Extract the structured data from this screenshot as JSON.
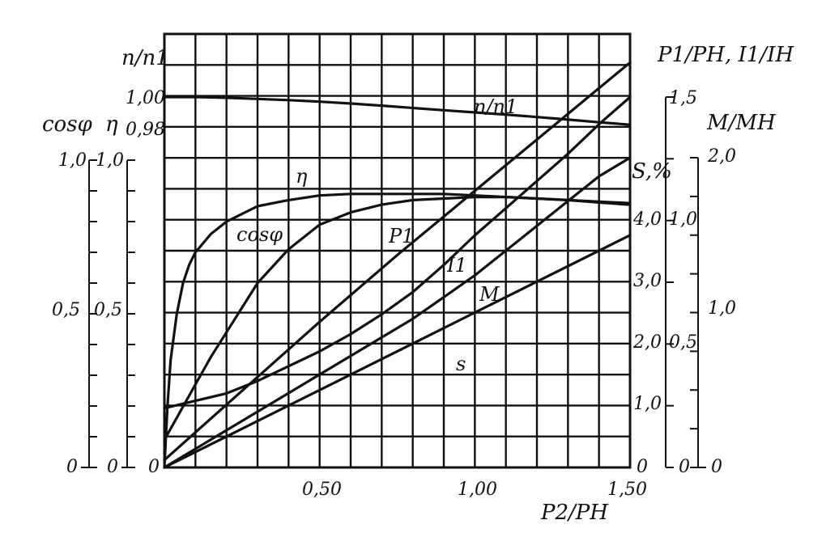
{
  "chart_data": {
    "type": "line",
    "x": {
      "label": "P2/PH",
      "range": [
        0,
        1.5
      ],
      "tick_labels": [
        "0,50",
        "1,00",
        "1,50"
      ],
      "tick_values": [
        0.5,
        1.0,
        1.5
      ],
      "origin_label": "0"
    },
    "axes": {
      "cos_phi": {
        "title": "cosφ",
        "range": [
          0,
          1.0
        ],
        "tick_labels": [
          "1,0",
          "0,5",
          "0"
        ]
      },
      "eta": {
        "title": "η",
        "range": [
          0,
          1.0
        ],
        "tick_labels": [
          "1,0",
          "0,5",
          "0"
        ]
      },
      "n_ratio": {
        "title": "n/n1",
        "range": [
          0.98,
          1.0
        ],
        "tick_labels": [
          "1,00",
          "0,98"
        ]
      },
      "p1_i1": {
        "title": "P1/PH, I1/IH",
        "range": [
          0,
          1.5
        ],
        "tick_labels": [
          "1,5",
          "1,0",
          "0,5",
          "0"
        ]
      },
      "slip": {
        "title": "S,%",
        "range": [
          0,
          5.0
        ],
        "tick_labels": [
          "4,0",
          "3,0",
          "2,0",
          "1,0",
          "0"
        ]
      },
      "torque": {
        "title": "M/MH",
        "range": [
          0,
          2.0
        ],
        "tick_labels": [
          "2,0",
          "1,0",
          "0"
        ]
      }
    },
    "grid": true,
    "series": [
      {
        "name": "n/n1",
        "axis": "n_ratio",
        "x": [
          0,
          0.1,
          0.2,
          0.3,
          0.4,
          0.5,
          0.6,
          0.7,
          0.8,
          0.9,
          1.0,
          1.1,
          1.2,
          1.3,
          1.4,
          1.5
        ],
        "y": [
          1.0,
          1.0,
          0.9995,
          0.9988,
          0.998,
          0.997,
          0.9958,
          0.9944,
          0.9929,
          0.9914,
          0.99,
          0.9886,
          0.987,
          0.9853,
          0.9836,
          0.982
        ]
      },
      {
        "name": "η",
        "axis": "eta",
        "x": [
          0,
          0.01,
          0.02,
          0.04,
          0.06,
          0.08,
          0.1,
          0.15,
          0.2,
          0.3,
          0.4,
          0.5,
          0.6,
          0.7,
          0.8,
          0.9,
          1.0,
          1.1,
          1.2,
          1.3,
          1.4,
          1.5
        ],
        "y": [
          0,
          0.2,
          0.35,
          0.5,
          0.6,
          0.66,
          0.7,
          0.76,
          0.8,
          0.85,
          0.87,
          0.885,
          0.89,
          0.89,
          0.89,
          0.89,
          0.885,
          0.88,
          0.875,
          0.87,
          0.862,
          0.855
        ]
      },
      {
        "name": "cosφ",
        "axis": "cos_phi",
        "x": [
          0,
          0.05,
          0.1,
          0.15,
          0.2,
          0.3,
          0.4,
          0.5,
          0.6,
          0.7,
          0.8,
          0.9,
          1.0,
          1.1,
          1.2,
          1.3,
          1.4,
          1.5
        ],
        "y": [
          0.09,
          0.18,
          0.27,
          0.36,
          0.44,
          0.6,
          0.71,
          0.79,
          0.83,
          0.855,
          0.87,
          0.875,
          0.88,
          0.88,
          0.875,
          0.87,
          0.865,
          0.86
        ]
      },
      {
        "name": "P1",
        "axis": "p1_i1",
        "x": [
          0,
          0.25,
          0.5,
          0.75,
          1.0,
          1.25,
          1.5
        ],
        "y": [
          0.03,
          0.31,
          0.59,
          0.86,
          1.12,
          1.38,
          1.64
        ]
      },
      {
        "name": "I1",
        "axis": "p1_i1",
        "x": [
          0,
          0.1,
          0.2,
          0.3,
          0.4,
          0.5,
          0.6,
          0.7,
          0.8,
          0.9,
          1.0,
          1.1,
          1.2,
          1.3,
          1.4,
          1.5
        ],
        "y": [
          0.24,
          0.27,
          0.3,
          0.35,
          0.41,
          0.47,
          0.54,
          0.62,
          0.71,
          0.82,
          0.94,
          1.05,
          1.16,
          1.27,
          1.39,
          1.5
        ]
      },
      {
        "name": "M",
        "axis": "torque",
        "x": [
          0,
          0.5,
          1.0,
          1.5
        ],
        "y": [
          0.0,
          0.5,
          1.0,
          1.5
        ]
      },
      {
        "name": "s",
        "axis": "slip",
        "x": [
          0,
          0.2,
          0.4,
          0.6,
          0.8,
          0.9,
          1.0,
          1.1,
          1.2,
          1.3,
          1.4,
          1.5
        ],
        "y": [
          0,
          0.6,
          1.2,
          1.8,
          2.4,
          2.75,
          3.1,
          3.5,
          3.9,
          4.3,
          4.7,
          5.0
        ]
      }
    ]
  }
}
